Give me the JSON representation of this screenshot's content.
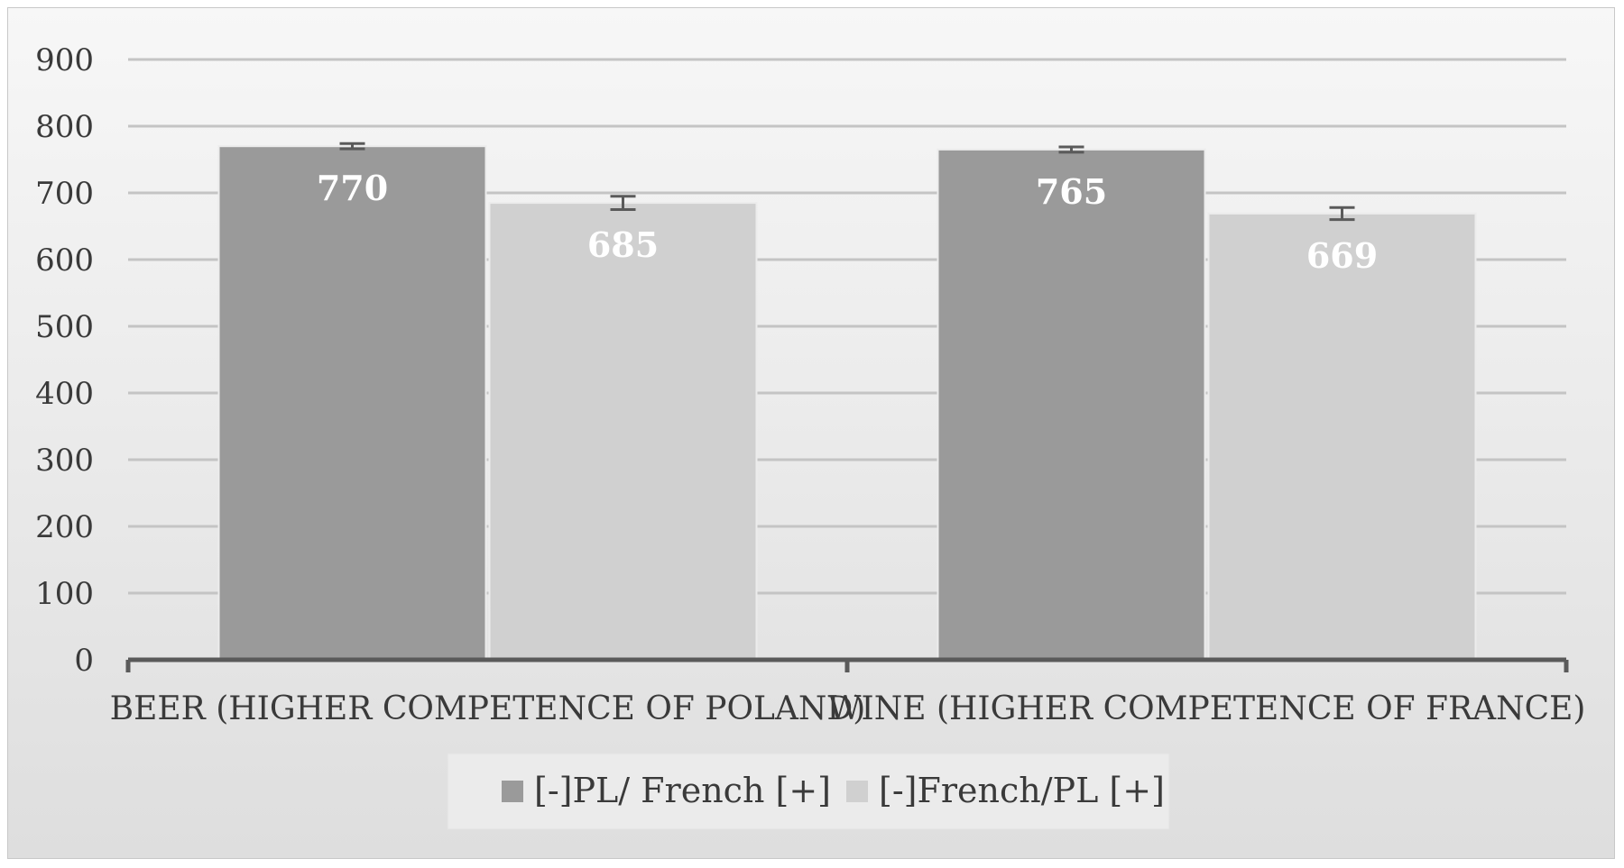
{
  "chart_data": {
    "type": "bar",
    "categories": [
      "BEER (HIGHER COMPETENCE OF POLAND)",
      "WINE (HIGHER COMPETENCE OF FRANCE)"
    ],
    "series": [
      {
        "name": "[-]PL/ French [+]",
        "values": [
          770,
          765
        ],
        "error": [
          4,
          4
        ],
        "color": "#9a9a9a"
      },
      {
        "name": "[-]French/PL [+]",
        "values": [
          685,
          669
        ],
        "error": [
          10,
          9
        ],
        "color": "#d0d0d0"
      }
    ],
    "yticks": [
      0,
      100,
      200,
      300,
      400,
      500,
      600,
      700,
      800,
      900
    ],
    "ylim": [
      0,
      900
    ],
    "grid": true,
    "legend": "bottom-center"
  }
}
